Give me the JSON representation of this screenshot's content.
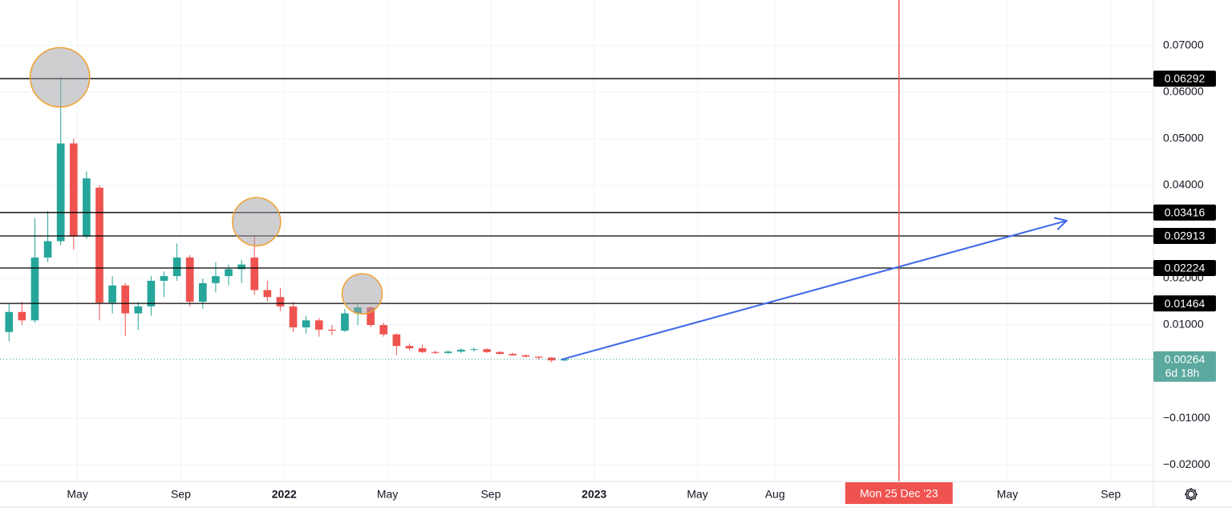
{
  "chart_data": {
    "type": "candlestick",
    "x": [
      1.35,
      1.85,
      2.35,
      2.85,
      3.35,
      3.85,
      4.35,
      4.85,
      5.35,
      5.85,
      6.35,
      6.85,
      7.35,
      7.85,
      8.35,
      8.85,
      9.35,
      9.85,
      10.35,
      10.85,
      11.35,
      11.85,
      12.35,
      12.85,
      13.35,
      13.85,
      14.35,
      14.85,
      15.35,
      15.85,
      16.35,
      16.85,
      17.35,
      17.85,
      18.35,
      18.85,
      19.35,
      19.85,
      20.35,
      20.85,
      21.35,
      21.85,
      22.35,
      22.85
    ],
    "open": [
      0.0085,
      0.0128,
      0.011,
      0.0245,
      0.028,
      0.049,
      0.029,
      0.0395,
      0.0148,
      0.0185,
      0.0125,
      0.014,
      0.0195,
      0.0205,
      0.0245,
      0.015,
      0.019,
      0.0205,
      0.022,
      0.0245,
      0.0175,
      0.016,
      0.014,
      0.0095,
      0.011,
      0.009,
      0.0088,
      0.0125,
      0.0138,
      0.01,
      0.008,
      0.0055,
      0.005,
      0.0042,
      0.004,
      0.0043,
      0.0047,
      0.0048,
      0.0042,
      0.0038,
      0.0035,
      0.0032,
      0.003,
      0.0024
    ],
    "high": [
      0.0147,
      0.015,
      0.033,
      0.0345,
      0.0632,
      0.05,
      0.043,
      0.04,
      0.0205,
      0.019,
      0.015,
      0.0205,
      0.0215,
      0.0275,
      0.025,
      0.02,
      0.0235,
      0.023,
      0.024,
      0.0291,
      0.0195,
      0.018,
      0.015,
      0.012,
      0.0115,
      0.01,
      0.0135,
      0.0146,
      0.014,
      0.0105,
      0.0082,
      0.006,
      0.0058,
      0.0045,
      0.0046,
      0.005,
      0.0052,
      0.005,
      0.0044,
      0.004,
      0.0037,
      0.0033,
      0.0031,
      0.0028
    ],
    "low": [
      0.0065,
      0.01,
      0.0105,
      0.0235,
      0.0272,
      0.0262,
      0.0285,
      0.011,
      0.0125,
      0.0076,
      0.009,
      0.012,
      0.016,
      0.0195,
      0.014,
      0.0135,
      0.017,
      0.0185,
      0.019,
      0.0165,
      0.015,
      0.013,
      0.0085,
      0.0082,
      0.0075,
      0.0078,
      0.0085,
      0.01,
      0.0095,
      0.0075,
      0.0035,
      0.0045,
      0.004,
      0.0038,
      0.0038,
      0.004,
      0.0043,
      0.004,
      0.0037,
      0.0034,
      0.0031,
      0.0026,
      0.002,
      0.0022
    ],
    "close": [
      0.0128,
      0.011,
      0.0245,
      0.028,
      0.049,
      0.029,
      0.0415,
      0.0148,
      0.0185,
      0.0125,
      0.014,
      0.0195,
      0.0205,
      0.0245,
      0.015,
      0.019,
      0.0205,
      0.022,
      0.023,
      0.0175,
      0.016,
      0.014,
      0.0095,
      0.011,
      0.009,
      0.0088,
      0.0125,
      0.0138,
      0.01,
      0.008,
      0.0055,
      0.005,
      0.0042,
      0.004,
      0.0043,
      0.0047,
      0.0048,
      0.0042,
      0.0038,
      0.0035,
      0.0032,
      0.003,
      0.0024,
      0.00264
    ],
    "up_color": "#26a69a",
    "down_color": "#ef5350",
    "xlim": [
      1,
      45.65
    ],
    "xticks": [
      {
        "value": 4,
        "label": "May"
      },
      {
        "value": 8,
        "label": "Sep"
      },
      {
        "value": 12,
        "label": "2022"
      },
      {
        "value": 16,
        "label": "May"
      },
      {
        "value": 20,
        "label": "Sep"
      },
      {
        "value": 24,
        "label": "2023"
      },
      {
        "value": 28,
        "label": "May"
      },
      {
        "value": 31,
        "label": "Aug"
      },
      {
        "value": 40,
        "label": "May"
      },
      {
        "value": 44,
        "label": "Sep"
      }
    ],
    "ylim": [
      -0.0236,
      0.0798
    ],
    "yticks": [
      {
        "value": 0.07,
        "label": "0.07000"
      },
      {
        "value": 0.06,
        "label": "0.06000"
      },
      {
        "value": 0.05,
        "label": "0.05000"
      },
      {
        "value": 0.04,
        "label": "0.04000"
      },
      {
        "value": 0.02,
        "label": "0.02000"
      },
      {
        "value": 0.01,
        "label": "0.01000"
      },
      {
        "value": -0.01,
        "label": "−0.01000"
      },
      {
        "value": -0.02,
        "label": "−0.02000"
      }
    ],
    "grid": true,
    "levels": [
      0.06292,
      0.03416,
      0.02913,
      0.02224,
      0.01464
    ],
    "last_price": 0.00264,
    "countdown": "6d 18h",
    "crosshair": {
      "x": 35.8,
      "label": "Mon 25 Dec '23"
    },
    "trend_line": {
      "x": [
        22.73,
        42.29
      ],
      "y": [
        0.00259,
        0.0324
      ]
    },
    "highlights": {
      "x": [
        3.32,
        10.93,
        15.02
      ],
      "y": [
        0.0632,
        0.0322,
        0.0167
      ]
    }
  }
}
